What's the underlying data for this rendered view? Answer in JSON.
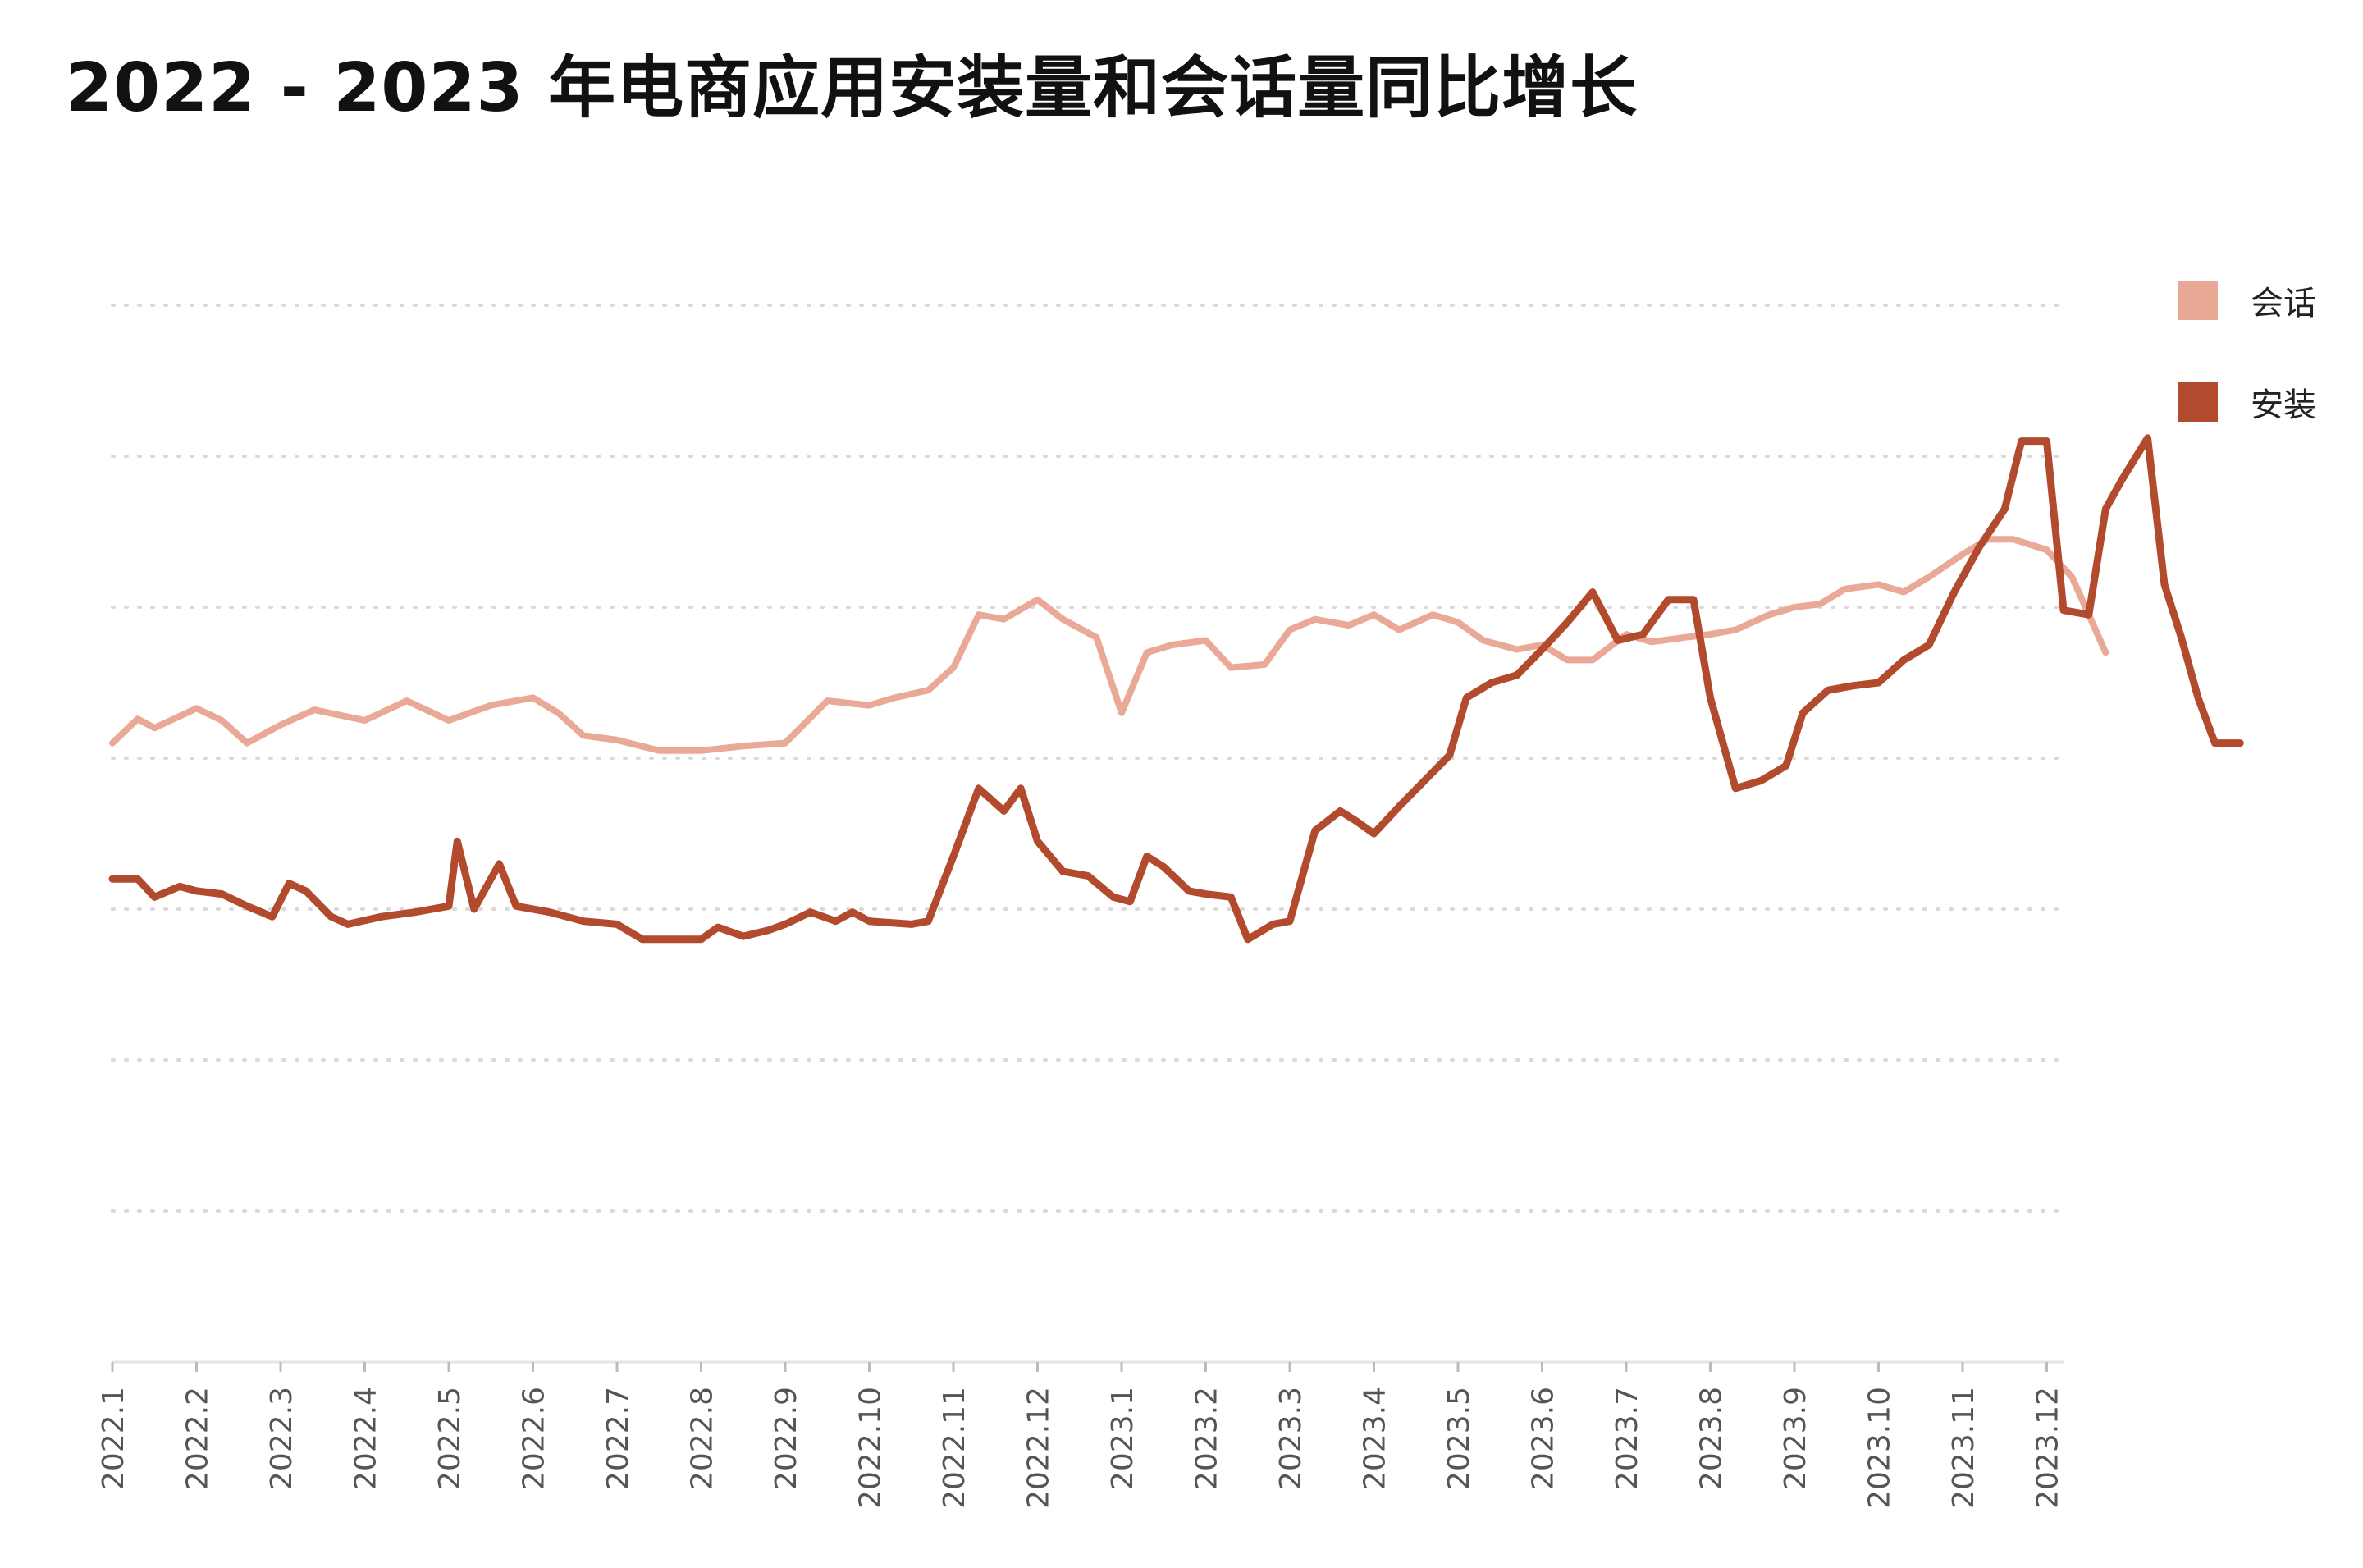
{
  "chart_data": {
    "type": "line",
    "title": "2022 - 2023 年电商应用安装量和会话量同比增长",
    "xlabel": "",
    "ylabel": "",
    "ylim": [
      0,
      7
    ],
    "grid": true,
    "legend_position": "top-right",
    "categories": [
      "2022.1",
      "2022.2",
      "2022.3",
      "2022.4",
      "2022.5",
      "2022.6",
      "2022.7",
      "2022.8",
      "2022.9",
      "2022.10",
      "2022.11",
      "2022.12",
      "2023.1",
      "2023.2",
      "2023.3",
      "2023.4",
      "2023.5",
      "2023.6",
      "2023.7",
      "2023.8",
      "2023.9",
      "2023.10",
      "2023.11",
      "2023.12"
    ],
    "series": [
      {
        "name": "会话",
        "color": "#eaa896",
        "points": [
          [
            0,
            4.1
          ],
          [
            0.3,
            4.26
          ],
          [
            0.5,
            4.2
          ],
          [
            1.0,
            4.33
          ],
          [
            1.3,
            4.25
          ],
          [
            1.6,
            4.1
          ],
          [
            2.0,
            4.22
          ],
          [
            2.4,
            4.32
          ],
          [
            3.0,
            4.25
          ],
          [
            3.5,
            4.38
          ],
          [
            4.0,
            4.25
          ],
          [
            4.5,
            4.35
          ],
          [
            5.0,
            4.4
          ],
          [
            5.3,
            4.3
          ],
          [
            5.6,
            4.15
          ],
          [
            6.0,
            4.12
          ],
          [
            6.5,
            4.05
          ],
          [
            7.0,
            4.05
          ],
          [
            7.5,
            4.08
          ],
          [
            8.0,
            4.1
          ],
          [
            8.5,
            4.38
          ],
          [
            9.0,
            4.35
          ],
          [
            9.3,
            4.4
          ],
          [
            9.7,
            4.45
          ],
          [
            10.0,
            4.6
          ],
          [
            10.3,
            4.95
          ],
          [
            10.6,
            4.92
          ],
          [
            11.0,
            5.05
          ],
          [
            11.3,
            4.92
          ],
          [
            11.7,
            4.8
          ],
          [
            12.0,
            4.3
          ],
          [
            12.3,
            4.7
          ],
          [
            12.6,
            4.75
          ],
          [
            13.0,
            4.78
          ],
          [
            13.3,
            4.6
          ],
          [
            13.7,
            4.62
          ],
          [
            14.0,
            4.85
          ],
          [
            14.3,
            4.92
          ],
          [
            14.7,
            4.88
          ],
          [
            15.0,
            4.95
          ],
          [
            15.3,
            4.85
          ],
          [
            15.7,
            4.95
          ],
          [
            16.0,
            4.9
          ],
          [
            16.3,
            4.78
          ],
          [
            16.7,
            4.72
          ],
          [
            17.0,
            4.75
          ],
          [
            17.3,
            4.65
          ],
          [
            17.6,
            4.65
          ],
          [
            18.0,
            4.82
          ],
          [
            18.3,
            4.77
          ],
          [
            18.7,
            4.8
          ],
          [
            19.0,
            4.82
          ],
          [
            19.3,
            4.85
          ],
          [
            19.7,
            4.95
          ],
          [
            20.0,
            5.0
          ],
          [
            20.3,
            5.02
          ],
          [
            20.6,
            5.12
          ],
          [
            21.0,
            5.15
          ],
          [
            21.3,
            5.1
          ],
          [
            21.6,
            5.2
          ],
          [
            22.0,
            5.35
          ],
          [
            22.3,
            5.45
          ],
          [
            22.6,
            5.45
          ],
          [
            23.0,
            5.38
          ],
          [
            23.3,
            5.2
          ],
          [
            23.7,
            4.7
          ]
        ]
      },
      {
        "name": "安装",
        "color": "#b24a2e",
        "points": [
          [
            0,
            3.2
          ],
          [
            0.3,
            3.2
          ],
          [
            0.5,
            3.08
          ],
          [
            0.8,
            3.15
          ],
          [
            1.0,
            3.12
          ],
          [
            1.3,
            3.1
          ],
          [
            1.6,
            3.02
          ],
          [
            1.9,
            2.95
          ],
          [
            2.1,
            3.17
          ],
          [
            2.3,
            3.12
          ],
          [
            2.6,
            2.95
          ],
          [
            2.8,
            2.9
          ],
          [
            3.2,
            2.95
          ],
          [
            3.6,
            2.98
          ],
          [
            4.0,
            3.02
          ],
          [
            4.1,
            3.45
          ],
          [
            4.3,
            3.0
          ],
          [
            4.6,
            3.3
          ],
          [
            4.8,
            3.02
          ],
          [
            5.2,
            2.98
          ],
          [
            5.6,
            2.92
          ],
          [
            6.0,
            2.9
          ],
          [
            6.3,
            2.8
          ],
          [
            7.0,
            2.8
          ],
          [
            7.2,
            2.88
          ],
          [
            7.5,
            2.82
          ],
          [
            7.8,
            2.86
          ],
          [
            8.0,
            2.9
          ],
          [
            8.3,
            2.98
          ],
          [
            8.6,
            2.92
          ],
          [
            8.8,
            2.98
          ],
          [
            9.0,
            2.92
          ],
          [
            9.5,
            2.9
          ],
          [
            9.7,
            2.92
          ],
          [
            10.0,
            3.35
          ],
          [
            10.3,
            3.8
          ],
          [
            10.6,
            3.65
          ],
          [
            10.8,
            3.8
          ],
          [
            11.0,
            3.45
          ],
          [
            11.3,
            3.25
          ],
          [
            11.6,
            3.22
          ],
          [
            11.9,
            3.08
          ],
          [
            12.1,
            3.05
          ],
          [
            12.3,
            3.35
          ],
          [
            12.5,
            3.28
          ],
          [
            12.8,
            3.12
          ],
          [
            13.0,
            3.1
          ],
          [
            13.3,
            3.08
          ],
          [
            13.5,
            2.8
          ],
          [
            13.8,
            2.9
          ],
          [
            14.0,
            2.92
          ],
          [
            14.3,
            3.52
          ],
          [
            14.6,
            3.65
          ],
          [
            14.8,
            3.58
          ],
          [
            15.0,
            3.5
          ],
          [
            15.3,
            3.68
          ],
          [
            15.6,
            3.85
          ],
          [
            15.9,
            4.02
          ],
          [
            16.1,
            4.4
          ],
          [
            16.4,
            4.5
          ],
          [
            16.7,
            4.55
          ],
          [
            17.0,
            4.72
          ],
          [
            17.3,
            4.9
          ],
          [
            17.6,
            5.1
          ],
          [
            17.9,
            4.78
          ],
          [
            18.2,
            4.82
          ],
          [
            18.5,
            5.05
          ],
          [
            18.8,
            5.05
          ],
          [
            19.0,
            4.4
          ],
          [
            19.3,
            3.8
          ],
          [
            19.6,
            3.85
          ],
          [
            19.9,
            3.95
          ],
          [
            20.1,
            4.3
          ],
          [
            20.4,
            4.45
          ],
          [
            20.7,
            4.48
          ],
          [
            21.0,
            4.5
          ],
          [
            21.3,
            4.65
          ],
          [
            21.6,
            4.75
          ],
          [
            21.9,
            5.1
          ],
          [
            22.2,
            5.4
          ],
          [
            22.5,
            5.65
          ],
          [
            22.7,
            6.1
          ],
          [
            23.0,
            6.1
          ],
          [
            23.2,
            4.98
          ],
          [
            23.5,
            4.95
          ],
          [
            23.7,
            5.65
          ],
          [
            23.9,
            5.85
          ],
          [
            24.2,
            6.12
          ],
          [
            24.4,
            5.15
          ],
          [
            24.6,
            4.8
          ],
          [
            24.8,
            4.4
          ],
          [
            25.0,
            4.1
          ],
          [
            25.3,
            4.1
          ]
        ]
      }
    ]
  }
}
